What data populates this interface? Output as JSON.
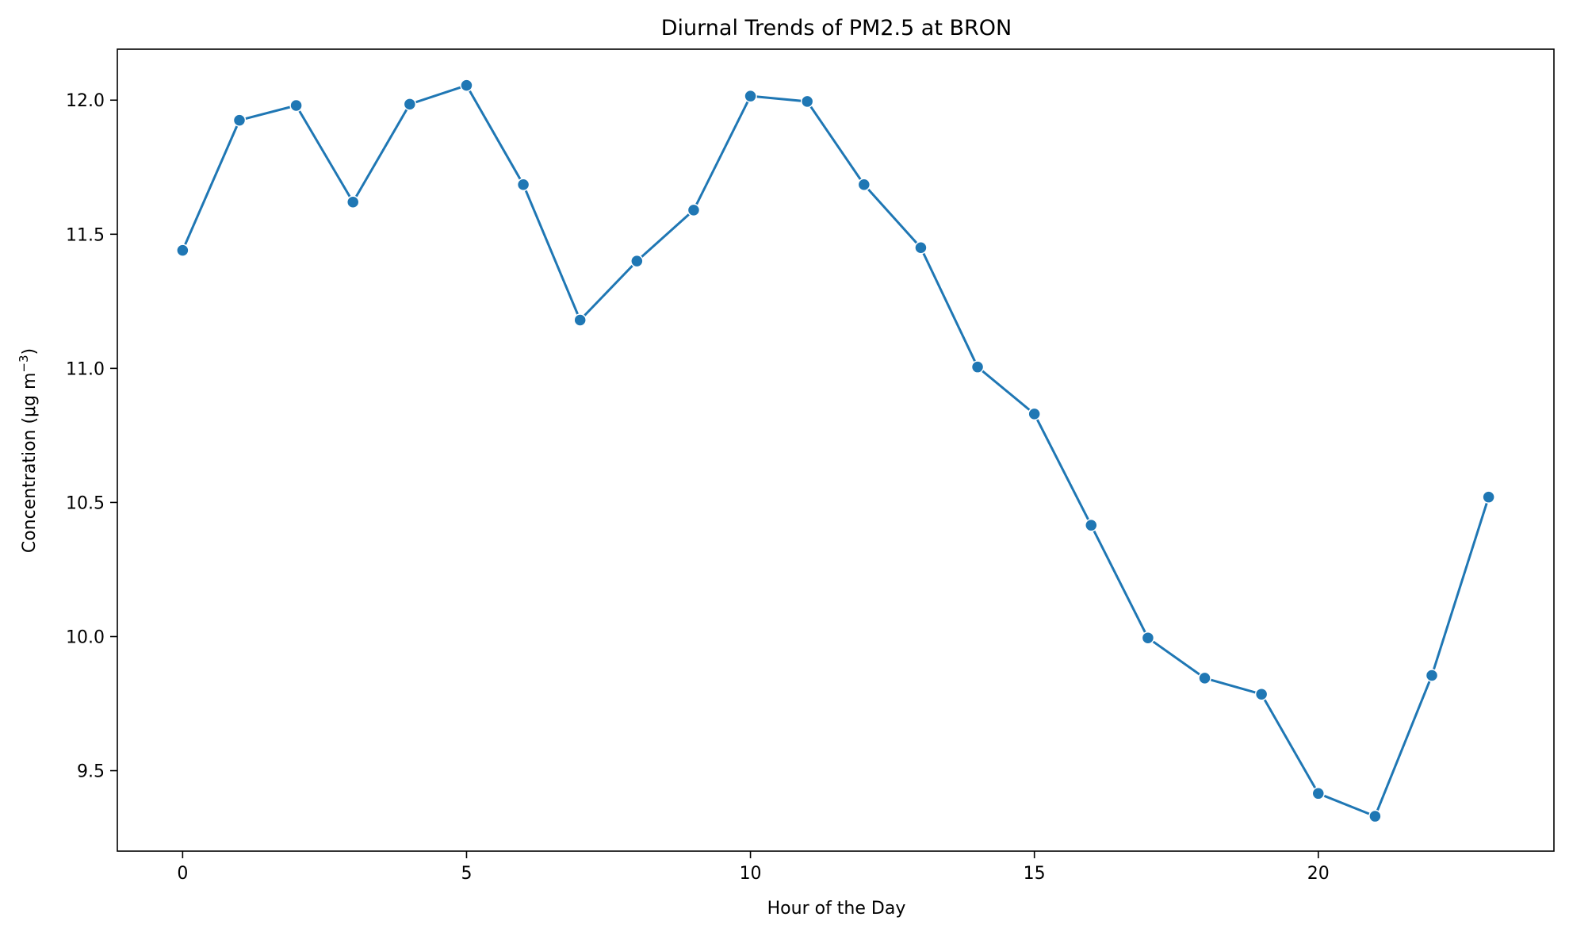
{
  "chart_data": {
    "type": "line",
    "title": "Diurnal Trends of PM2.5 at BRON",
    "xlabel": "Hour of the Day",
    "ylabel": "Concentration (μg m",
    "ylabel_superscript": "−3",
    "ylabel_suffix": ")",
    "xlim": [
      -1.15,
      24.15
    ],
    "ylim": [
      9.2,
      12.19
    ],
    "xticks": [
      0,
      5,
      10,
      15,
      20
    ],
    "yticks": [
      9.5,
      10.0,
      10.5,
      11.0,
      11.5,
      12.0
    ],
    "xtick_labels": [
      "0",
      "5",
      "10",
      "15",
      "20"
    ],
    "ytick_labels": [
      "9.5",
      "10.0",
      "10.5",
      "11.0",
      "11.5",
      "12.0"
    ],
    "grid": false,
    "series": [
      {
        "color": "#1f77b4",
        "x": [
          0,
          1,
          2,
          3,
          4,
          5,
          6,
          7,
          8,
          9,
          10,
          11,
          12,
          13,
          14,
          15,
          16,
          17,
          18,
          19,
          20,
          21,
          22,
          23
        ],
        "y": [
          11.44,
          11.925,
          11.98,
          11.62,
          11.985,
          12.055,
          11.685,
          11.18,
          11.4,
          11.59,
          12.015,
          11.995,
          11.685,
          11.45,
          11.005,
          10.83,
          10.415,
          9.995,
          9.845,
          9.785,
          9.415,
          9.33,
          9.855,
          10.52
        ]
      }
    ]
  }
}
